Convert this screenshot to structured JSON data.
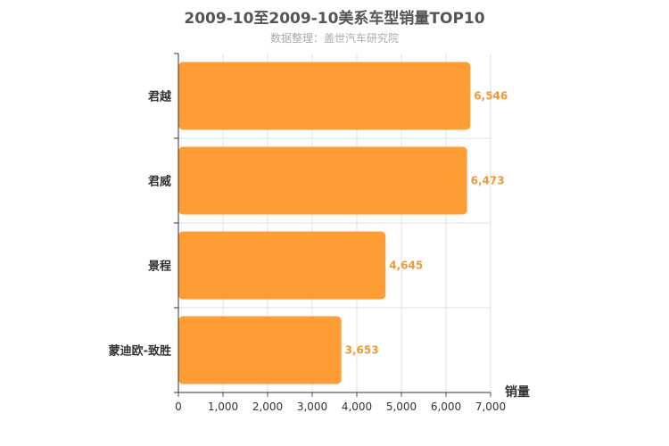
{
  "chart_data": {
    "type": "bar",
    "orientation": "horizontal",
    "title": "2009-10至2009-10美系车型销量TOP10",
    "subtitle": "数据整理：盖世汽车研究院",
    "categories": [
      "君越",
      "君威",
      "景程",
      "蒙迪欧-致胜"
    ],
    "values": [
      6546,
      6473,
      4645,
      3653
    ],
    "value_labels": [
      "6,546",
      "6,473",
      "4,645",
      "3,653"
    ],
    "xlabel": "销量",
    "ylabel": "",
    "xlim": [
      0,
      7000
    ],
    "ticks": [
      0,
      1000,
      2000,
      3000,
      4000,
      5000,
      6000,
      7000
    ],
    "tick_labels": [
      "0",
      "1,000",
      "2,000",
      "3,000",
      "4,000",
      "5,000",
      "6,000",
      "7,000"
    ],
    "grid": true,
    "bar_color": "#ff9c33",
    "label_color": "#ee9a3a"
  }
}
